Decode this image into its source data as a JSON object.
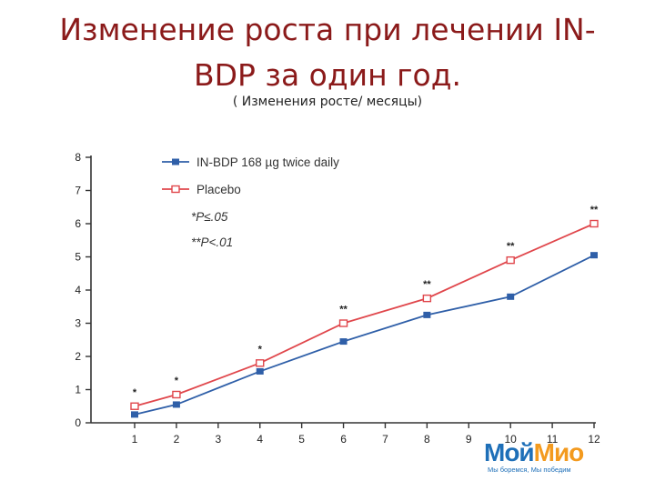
{
  "slide": {
    "title": "Изменение роста при лечении IN-BDP за один год.",
    "subtitle": "( Изменения росте/ месяцы)"
  },
  "logo": {
    "part1": "Мой",
    "part2": "Мио",
    "tagline": "Мы боремся, Мы победим",
    "colors": {
      "part1": "#1e6fb8",
      "part2": "#f39a1e"
    }
  },
  "chart_data": {
    "type": "line",
    "x_ticks": [
      1,
      2,
      3,
      4,
      5,
      6,
      7,
      8,
      9,
      10,
      11,
      12
    ],
    "y_ticks": [
      0,
      1,
      2,
      3,
      4,
      5,
      6,
      7,
      8
    ],
    "xlim": [
      1,
      12
    ],
    "ylim": [
      0,
      8
    ],
    "series": [
      {
        "name": "IN-BDP 168 µg twice daily",
        "color": "#2f5fa8",
        "marker": "filled-square",
        "x": [
          1,
          2,
          4,
          6,
          8,
          10,
          12
        ],
        "y": [
          0.25,
          0.55,
          1.55,
          2.45,
          3.25,
          3.8,
          5.05
        ]
      },
      {
        "name": "Placebo",
        "color": "#e0474c",
        "marker": "open-square",
        "x": [
          1,
          2,
          4,
          6,
          8,
          10,
          12
        ],
        "y": [
          0.5,
          0.85,
          1.8,
          3.0,
          3.75,
          4.9,
          6.0
        ]
      }
    ],
    "significance": [
      {
        "x": 1,
        "label": "*"
      },
      {
        "x": 2,
        "label": "*"
      },
      {
        "x": 4,
        "label": "*"
      },
      {
        "x": 6,
        "label": "**"
      },
      {
        "x": 8,
        "label": "**"
      },
      {
        "x": 10,
        "label": "**"
      },
      {
        "x": 12,
        "label": "**"
      }
    ],
    "notes": [
      "*P≤.05",
      "**P<.01"
    ],
    "legend_position": "top-left",
    "grid": false
  }
}
